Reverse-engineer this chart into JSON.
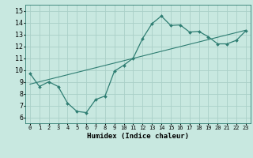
{
  "xlabel": "Humidex (Indice chaleur)",
  "ylabel": "",
  "xlim": [
    -0.5,
    23.5
  ],
  "ylim": [
    5.5,
    15.5
  ],
  "xticks": [
    0,
    1,
    2,
    3,
    4,
    5,
    6,
    7,
    8,
    9,
    10,
    11,
    12,
    13,
    14,
    15,
    16,
    17,
    18,
    19,
    20,
    21,
    22,
    23
  ],
  "yticks": [
    6,
    7,
    8,
    9,
    10,
    11,
    12,
    13,
    14,
    15
  ],
  "line_color": "#2e7d72",
  "bg_color": "#c8e8e0",
  "grid_color": "#aad0c8",
  "curve_x": [
    0,
    1,
    2,
    3,
    4,
    5,
    6,
    7,
    8,
    9,
    10,
    11,
    12,
    13,
    14,
    15,
    16,
    17,
    18,
    19,
    20,
    21,
    22,
    23
  ],
  "curve_y": [
    9.7,
    8.6,
    9.0,
    8.6,
    7.2,
    6.5,
    6.4,
    7.5,
    7.8,
    9.9,
    10.4,
    11.0,
    12.65,
    13.9,
    14.55,
    13.75,
    13.8,
    13.2,
    13.25,
    12.8,
    12.2,
    12.2,
    12.5,
    13.3
  ],
  "trend_x": [
    0,
    23
  ],
  "trend_y": [
    8.8,
    13.35
  ],
  "xlabel_fontsize": 6.5,
  "tick_fontsize_x": 5.0,
  "tick_fontsize_y": 6.0
}
